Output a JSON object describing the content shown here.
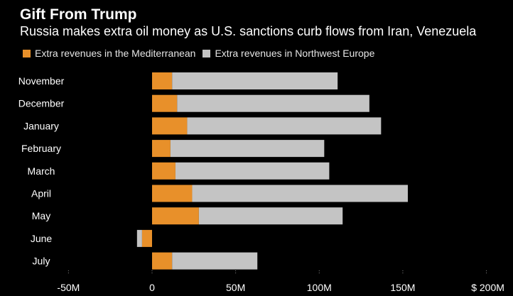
{
  "title": "Gift From Trump",
  "subtitle": "Russia makes extra oil money as U.S. sanctions curb flows from Iran, Venezuela",
  "colors": {
    "mediterranean": "#e8902a",
    "nw_europe": "#c4c4c4",
    "tick": "#888888"
  },
  "chart_data": {
    "type": "bar",
    "orientation": "horizontal",
    "stacked": true,
    "categories": [
      "November",
      "December",
      "January",
      "February",
      "March",
      "April",
      "May",
      "June",
      "July"
    ],
    "series": [
      {
        "name": "Extra revenues in the Mediterranean",
        "values": [
          12,
          15,
          21,
          11,
          14,
          24,
          28,
          -6,
          12
        ]
      },
      {
        "name": "Extra revenues in Northwest Europe",
        "values": [
          99,
          115,
          116,
          92,
          92,
          129,
          86,
          -3,
          51
        ]
      }
    ],
    "x_ticks": [
      "-50M",
      "0",
      "50M",
      "100M",
      "150M",
      "$ 200M"
    ],
    "x_tick_values": [
      -50,
      0,
      50,
      100,
      150,
      200
    ],
    "xlim": [
      -50,
      200
    ],
    "legend_position": "top-left",
    "grid": false
  }
}
